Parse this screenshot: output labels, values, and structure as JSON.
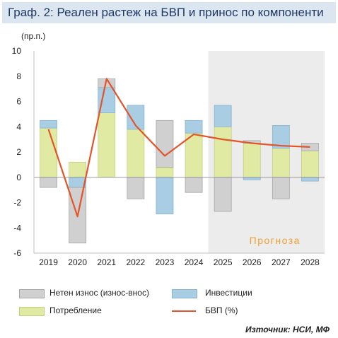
{
  "header": {
    "title": "Граф. 2: Реален растеж на БВП и принос по компоненти"
  },
  "source": "Източник: НСИ, МФ",
  "colors": {
    "net_exports": "#d0d0d0",
    "investment": "#a9cde3",
    "consumption": "#e0eaa3",
    "gdp": "#e2542a",
    "forecast_shade": "#ececec",
    "forecast_text": "#f0a030"
  },
  "chart_data": {
    "type": "bar",
    "unit_label": "(пр.п.)",
    "categories": [
      "2019",
      "2020",
      "2021",
      "2022",
      "2023",
      "2024",
      "2025",
      "2026",
      "2027",
      "2028"
    ],
    "ylim": [
      -6,
      10
    ],
    "yticks": [
      -6,
      -4,
      -2,
      0,
      2,
      4,
      6,
      8,
      10
    ],
    "forecast_from": "2025",
    "forecast_label": "Прогноза",
    "series": [
      {
        "name": "Нетен износ (износ-внос)",
        "kind": "bar",
        "values": [
          -0.8,
          -4.4,
          0.7,
          -1.7,
          3.7,
          -1.2,
          -2.7,
          0.2,
          -1.7,
          0.6
        ]
      },
      {
        "name": "Инвестиции",
        "kind": "bar",
        "values": [
          0.6,
          -0.8,
          2.0,
          1.9,
          -2.9,
          1.0,
          1.7,
          -0.2,
          1.8,
          -0.3
        ]
      },
      {
        "name": "Потребление",
        "kind": "bar",
        "values": [
          3.9,
          1.2,
          5.1,
          3.8,
          0.8,
          3.5,
          4.0,
          2.7,
          2.3,
          2.1
        ]
      },
      {
        "name": "БВП (%)",
        "kind": "line",
        "values": [
          3.8,
          -3.1,
          7.8,
          4.1,
          1.7,
          3.4,
          3.0,
          2.7,
          2.5,
          2.4
        ]
      }
    ],
    "grid": false,
    "legend_position": "bottom"
  }
}
